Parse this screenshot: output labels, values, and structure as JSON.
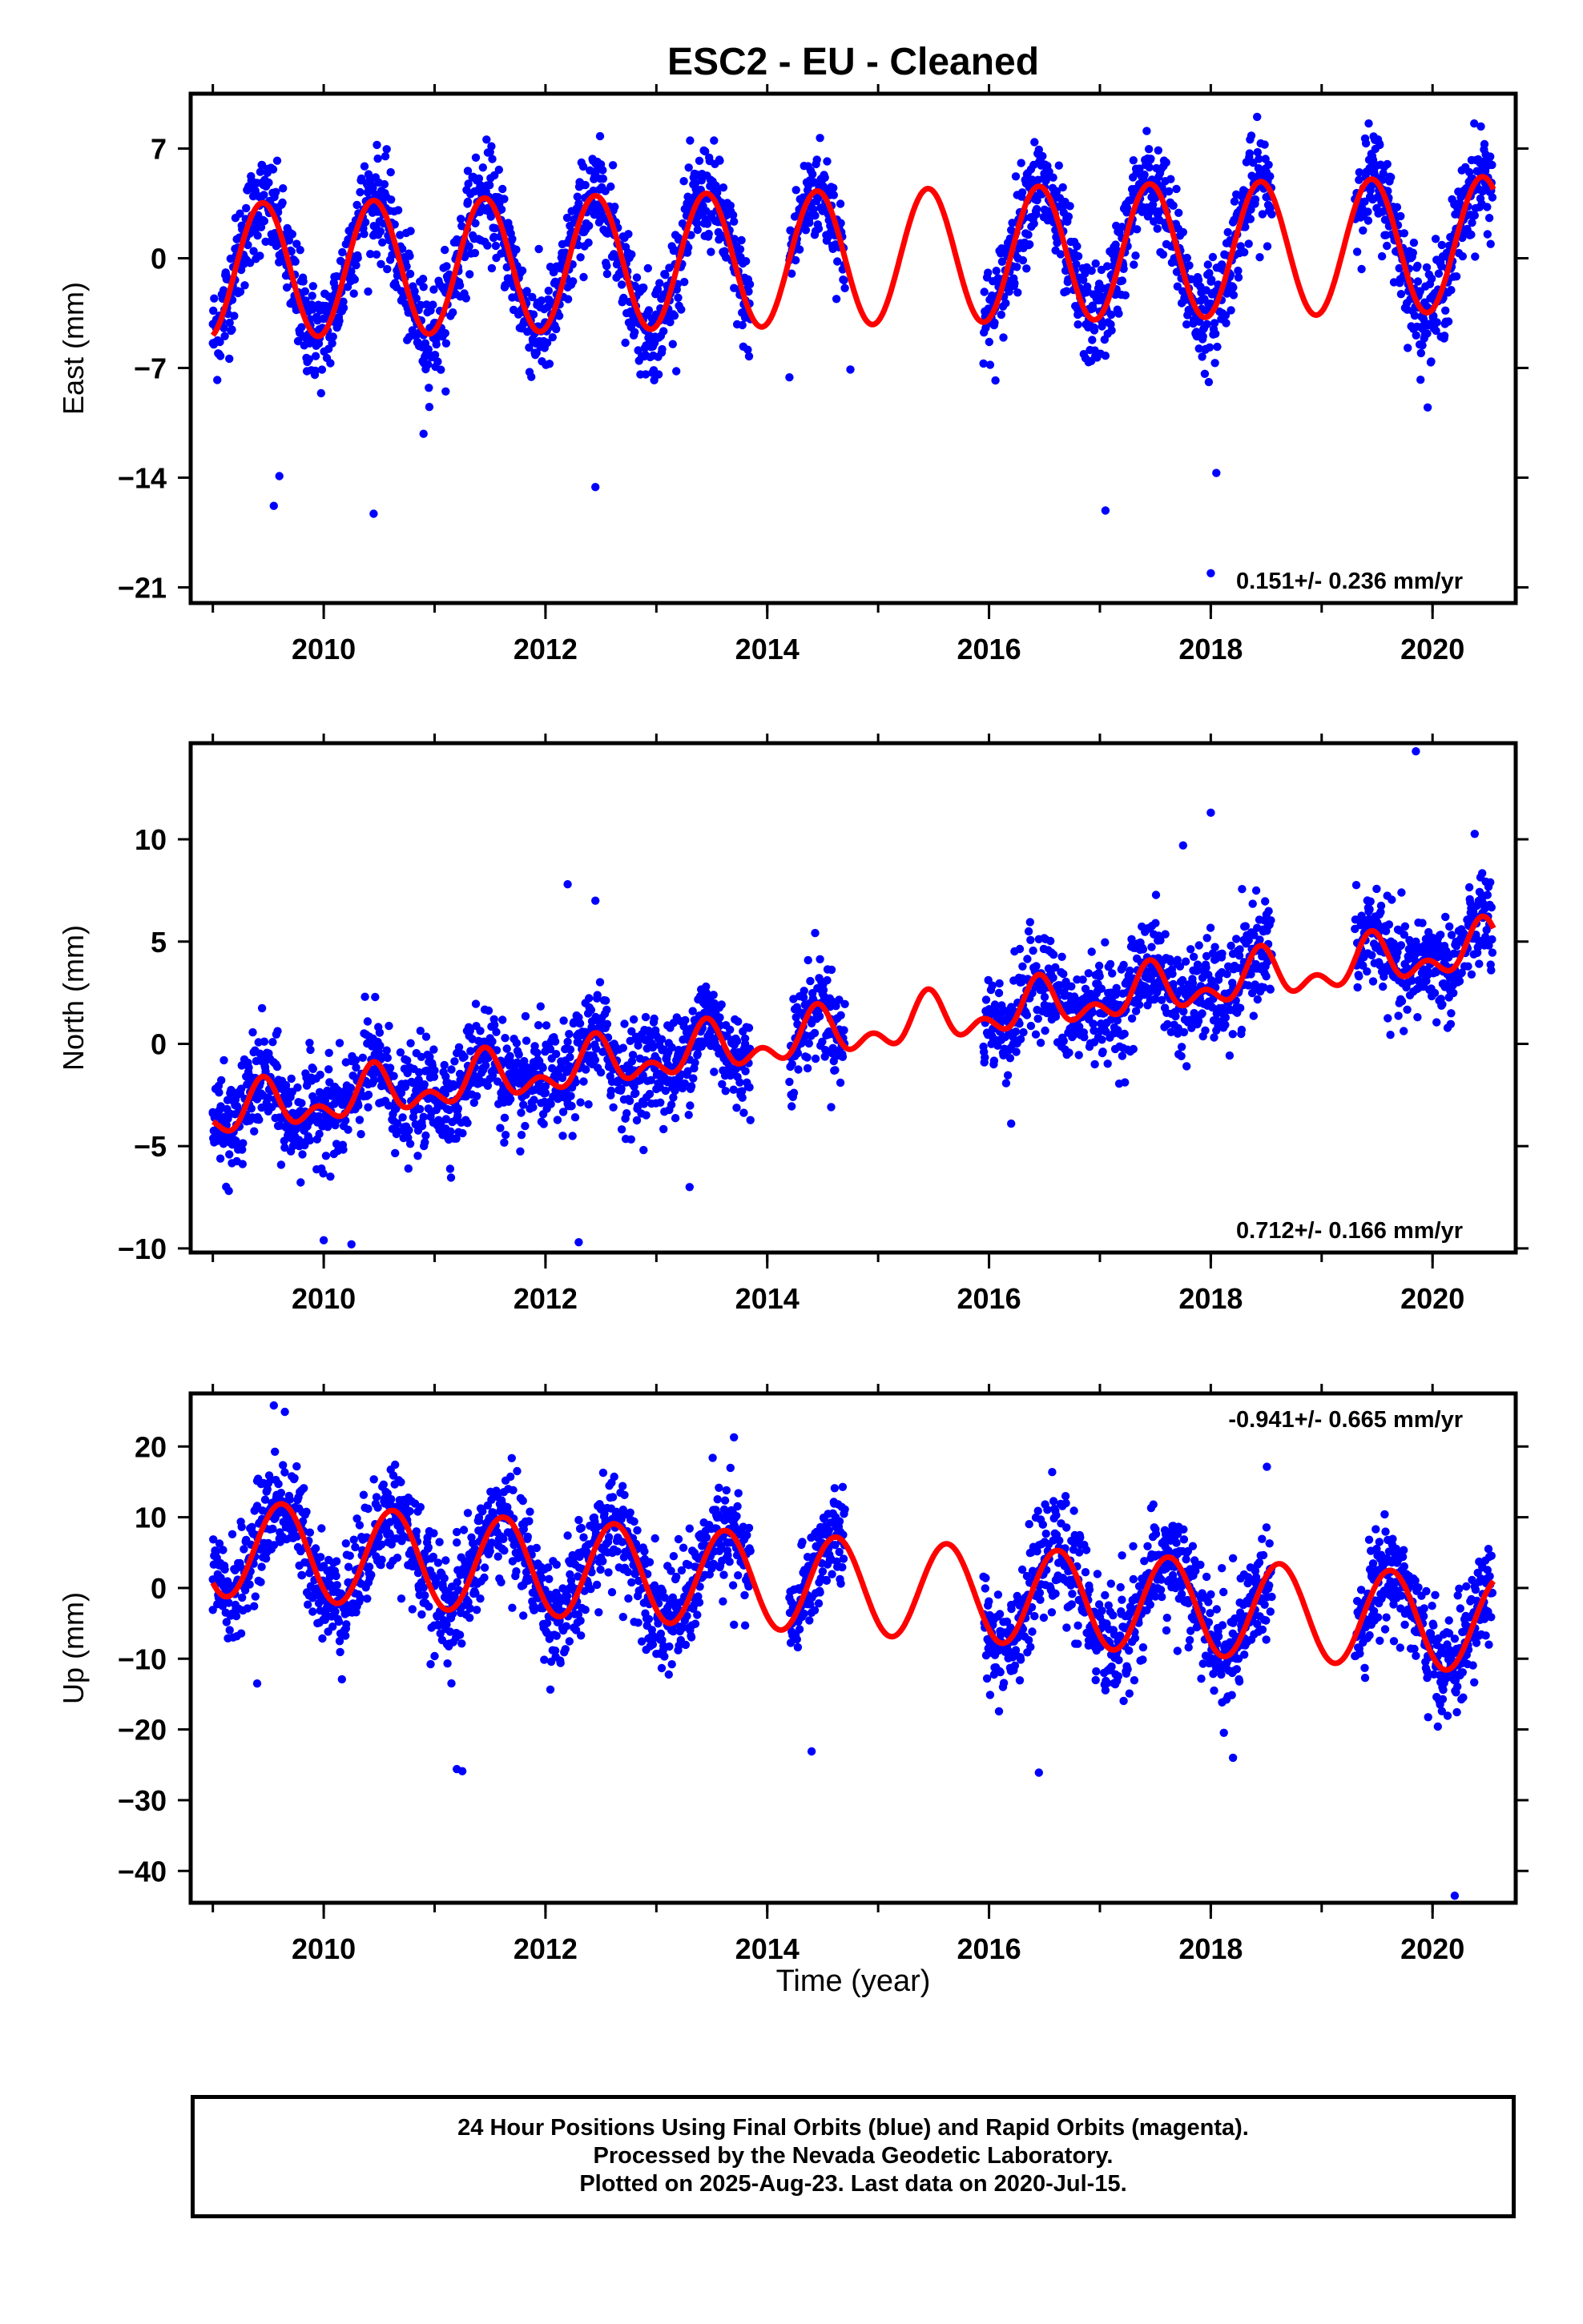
{
  "title": "ESC2  - EU - Cleaned",
  "xlabel": "Time (year)",
  "footer": {
    "line1": "24 Hour Positions Using Final Orbits (blue) and Rapid Orbits (magenta).",
    "line2": "Processed by the Nevada Geodetic Laboratory.",
    "line3": "Plotted on 2025-Aug-23. Last data on 2020-Jul-15."
  },
  "colors": {
    "points": "#0000ff",
    "model": "#ff0000",
    "frame": "#000000"
  },
  "chart_data": [
    {
      "type": "scatter",
      "component": "East",
      "ylabel": "East (mm)",
      "rate_text": "0.151+/- 0.236 mm/yr",
      "rate_position": "bottom-right",
      "xlim": [
        2008.8,
        2020.75
      ],
      "ylim": [
        -22,
        10.5
      ],
      "yticks": [
        7,
        0,
        -7,
        -14,
        -21
      ],
      "xticks": [
        2010,
        2012,
        2014,
        2016,
        2018,
        2020
      ],
      "grid": false,
      "data_spans": [
        [
          2009.0,
          2013.85
        ],
        [
          2014.2,
          2014.7
        ],
        [
          2015.95,
          2018.55
        ],
        [
          2019.3,
          2020.54
        ]
      ],
      "series": [
        {
          "name": "Final Orbits",
          "kind": "points",
          "x": [
            2009.0,
            2009.1,
            2009.2,
            2009.3,
            2009.4,
            2009.5,
            2009.6,
            2009.7,
            2009.8,
            2009.9,
            2010.0,
            2010.1,
            2010.2,
            2010.3,
            2010.4,
            2010.5,
            2010.6,
            2010.7,
            2010.8,
            2010.9,
            2011.0,
            2011.1,
            2011.2,
            2011.3,
            2011.4,
            2011.5,
            2011.6,
            2011.7,
            2011.8,
            2011.9,
            2012.0,
            2012.1,
            2012.2,
            2012.3,
            2012.4,
            2012.5,
            2012.6,
            2012.7,
            2012.8,
            2012.9,
            2013.0,
            2013.1,
            2013.2,
            2013.3,
            2013.4,
            2013.5,
            2013.6,
            2013.7,
            2013.8,
            2014.25,
            2014.35,
            2014.45,
            2014.55,
            2014.65,
            2016.0,
            2016.1,
            2016.2,
            2016.3,
            2016.4,
            2016.5,
            2016.6,
            2016.7,
            2016.8,
            2016.9,
            2017.0,
            2017.1,
            2017.2,
            2017.3,
            2017.4,
            2017.5,
            2017.6,
            2017.7,
            2017.8,
            2017.9,
            2018.0,
            2018.1,
            2018.2,
            2018.3,
            2018.4,
            2018.5,
            2019.35,
            2019.45,
            2019.55,
            2019.65,
            2019.75,
            2019.85,
            2019.95,
            2020.05,
            2020.15,
            2020.25,
            2020.35,
            2020.45,
            2009.55,
            2010.45,
            2009.6,
            2010.9,
            2012.45,
            2017.05,
            2018.0,
            2018.05,
            2014.2,
            2014.75
          ],
          "y": [
            -4.2,
            -2.1,
            0.6,
            3.2,
            4.8,
            3.1,
            0.2,
            -2.9,
            -4.4,
            -5.1,
            -4.5,
            -2.4,
            0.9,
            3.4,
            4.6,
            3.0,
            -0.1,
            -2.7,
            -4.6,
            -4.9,
            -4.3,
            -2.2,
            1.2,
            3.6,
            4.4,
            2.9,
            0.3,
            -2.5,
            -4.2,
            -4.8,
            -4.1,
            -2.3,
            1.0,
            3.5,
            4.1,
            2.7,
            0.1,
            -2.6,
            -4.1,
            -4.6,
            -3.9,
            -1.8,
            1.3,
            3.7,
            4.3,
            2.6,
            0.4,
            -1.9,
            -3.8,
            1.5,
            3.9,
            4.1,
            2.8,
            0.7,
            -3.7,
            -1.4,
            1.8,
            4.2,
            4.5,
            3.1,
            0.5,
            -2.1,
            -3.6,
            -3.9,
            -3.4,
            -1.1,
            2.0,
            4.1,
            4.6,
            3.0,
            0.9,
            -1.8,
            -3.3,
            -3.5,
            -2.9,
            -0.4,
            2.3,
            4.3,
            4.8,
            3.9,
            2.8,
            5.6,
            5.0,
            2.9,
            0.3,
            -2.2,
            -3.1,
            -2.0,
            0.8,
            3.3,
            5.1,
            6.0,
            -15.8,
            -16.3,
            -13.9,
            -11.2,
            -14.6,
            -16.1,
            -20.1,
            -13.7,
            -7.6,
            -7.1
          ]
        },
        {
          "name": "Model fit",
          "kind": "line",
          "amplitude": 4.3,
          "phase_peak": 0.45,
          "rate": 0.151,
          "ref_year": 2014.5,
          "offset": 0.0
        }
      ]
    },
    {
      "type": "scatter",
      "component": "North",
      "ylabel": "North (mm)",
      "rate_text": "0.712+/- 0.166 mm/yr",
      "rate_position": "bottom-right",
      "xlim": [
        2008.8,
        2020.75
      ],
      "ylim": [
        -10.2,
        14.7
      ],
      "yticks": [
        10,
        5,
        0,
        -5,
        -10
      ],
      "xticks": [
        2010,
        2012,
        2014,
        2016,
        2018,
        2020
      ],
      "grid": false,
      "data_spans": [
        [
          2009.0,
          2013.85
        ],
        [
          2014.2,
          2014.7
        ],
        [
          2015.95,
          2018.55
        ],
        [
          2019.3,
          2020.54
        ]
      ],
      "series": [
        {
          "name": "Final Orbits",
          "kind": "points",
          "x": [
            2009.0,
            2009.1,
            2009.2,
            2009.3,
            2009.4,
            2009.5,
            2009.6,
            2009.7,
            2009.8,
            2009.9,
            2010.0,
            2010.1,
            2010.2,
            2010.3,
            2010.4,
            2010.5,
            2010.6,
            2010.7,
            2010.8,
            2010.9,
            2011.0,
            2011.1,
            2011.2,
            2011.3,
            2011.4,
            2011.5,
            2011.6,
            2011.7,
            2011.8,
            2011.9,
            2012.0,
            2012.1,
            2012.2,
            2012.3,
            2012.4,
            2012.5,
            2012.6,
            2012.7,
            2012.8,
            2012.9,
            2013.0,
            2013.1,
            2013.2,
            2013.3,
            2013.4,
            2013.5,
            2013.6,
            2013.7,
            2013.8,
            2014.25,
            2014.35,
            2014.45,
            2014.55,
            2014.65,
            2016.0,
            2016.1,
            2016.2,
            2016.3,
            2016.4,
            2016.5,
            2016.6,
            2016.7,
            2016.8,
            2016.9,
            2017.0,
            2017.1,
            2017.2,
            2017.3,
            2017.4,
            2017.5,
            2017.6,
            2017.7,
            2017.8,
            2017.9,
            2018.0,
            2018.1,
            2018.2,
            2018.3,
            2018.4,
            2018.5,
            2019.35,
            2019.45,
            2019.55,
            2019.65,
            2019.75,
            2019.85,
            2019.95,
            2020.05,
            2020.15,
            2020.25,
            2020.35,
            2020.45,
            2019.85,
            2018.0,
            2017.75,
            2012.2,
            2012.45,
            2010.0,
            2010.25,
            2012.3,
            2013.3,
            2016.2
          ],
          "y": [
            -3.4,
            -4.1,
            -3.0,
            -1.6,
            -2.2,
            -3.3,
            -3.6,
            -2.4,
            -2.9,
            -3.7,
            -3.0,
            -2.1,
            -0.9,
            -1.8,
            -3.1,
            -2.9,
            -1.5,
            -2.4,
            -3.0,
            -2.2,
            -1.3,
            -1.6,
            -2.7,
            -2.1,
            -0.8,
            -1.7,
            -2.4,
            -1.8,
            -1.2,
            -1.6,
            -2.4,
            -1.5,
            0.1,
            0.5,
            -0.9,
            -1.4,
            -0.6,
            -0.2,
            -1.3,
            -0.8,
            0.4,
            0.9,
            -0.3,
            -0.2,
            0.6,
            1.2,
            0.3,
            -0.4,
            0.0,
            -0.6,
            0.4,
            1.5,
            1.9,
            0.7,
            1.3,
            0.6,
            1.8,
            3.2,
            3.0,
            1.9,
            1.4,
            2.8,
            2.1,
            1.2,
            1.5,
            2.5,
            3.7,
            3.2,
            2.4,
            2.2,
            3.3,
            4.1,
            2.9,
            2.3,
            2.6,
            3.5,
            4.4,
            4.0,
            2.9,
            3.3,
            4.1,
            5.4,
            5.0,
            3.8,
            3.9,
            5.0,
            4.4,
            3.6,
            4.3,
            5.5,
            6.1,
            6.4,
            14.3,
            11.3,
            9.7,
            7.8,
            7.0,
            -9.6,
            -9.8,
            -9.7,
            -7.0,
            -3.9
          ]
        },
        {
          "name": "Model fit",
          "kind": "line",
          "amplitude": 0.9,
          "phase_peak": 0.45,
          "rate": 0.712,
          "ref_year": 2014.5,
          "offset": 0.4,
          "semiannual": 0.7
        }
      ]
    },
    {
      "type": "scatter",
      "component": "Up",
      "ylabel": "Up (mm)",
      "rate_text": "-0.941+/- 0.665 mm/yr",
      "rate_position": "top-right",
      "xlim": [
        2008.8,
        2020.75
      ],
      "ylim": [
        -44.5,
        27.5
      ],
      "yticks": [
        20,
        10,
        0,
        -10,
        -20,
        -30,
        -40
      ],
      "xticks": [
        2010,
        2012,
        2014,
        2016,
        2018,
        2020
      ],
      "grid": false,
      "data_spans": [
        [
          2009.0,
          2013.85
        ],
        [
          2014.2,
          2014.7
        ],
        [
          2015.95,
          2018.55
        ],
        [
          2019.3,
          2020.54
        ]
      ],
      "series": [
        {
          "name": "Final Orbits",
          "kind": "points",
          "x": [
            2009.0,
            2009.1,
            2009.2,
            2009.3,
            2009.4,
            2009.5,
            2009.6,
            2009.7,
            2009.8,
            2009.9,
            2010.0,
            2010.1,
            2010.2,
            2010.3,
            2010.4,
            2010.5,
            2010.6,
            2010.7,
            2010.8,
            2010.9,
            2011.0,
            2011.1,
            2011.2,
            2011.3,
            2011.4,
            2011.5,
            2011.6,
            2011.7,
            2011.8,
            2011.9,
            2012.0,
            2012.1,
            2012.2,
            2012.3,
            2012.4,
            2012.5,
            2012.6,
            2012.7,
            2012.8,
            2012.9,
            2013.0,
            2013.1,
            2013.2,
            2013.3,
            2013.4,
            2013.5,
            2013.6,
            2013.7,
            2013.8,
            2014.25,
            2014.35,
            2014.45,
            2014.55,
            2014.65,
            2016.0,
            2016.1,
            2016.2,
            2016.3,
            2016.4,
            2016.5,
            2016.6,
            2016.7,
            2016.8,
            2016.9,
            2017.0,
            2017.1,
            2017.2,
            2017.3,
            2017.4,
            2017.5,
            2017.6,
            2017.7,
            2017.8,
            2017.9,
            2018.0,
            2018.1,
            2018.2,
            2018.3,
            2018.4,
            2018.5,
            2019.35,
            2019.45,
            2019.55,
            2019.65,
            2019.75,
            2019.85,
            2019.95,
            2020.05,
            2020.15,
            2020.25,
            2020.35,
            2020.45,
            2009.55,
            2009.65,
            2020.2,
            2011.2,
            2011.25,
            2016.45,
            2014.4,
            2013.7,
            2009.4,
            2018.2
          ],
          "y": [
            1.2,
            -0.8,
            2.5,
            6.8,
            11.6,
            14.8,
            12.3,
            7.1,
            1.8,
            -1.4,
            -0.6,
            2.4,
            6.3,
            9.8,
            11.2,
            8.1,
            3.2,
            -1.5,
            -3.0,
            -2.1,
            0.3,
            3.9,
            7.9,
            10.6,
            9.5,
            5.2,
            0.8,
            -2.8,
            -3.9,
            -3.1,
            -0.7,
            3.3,
            7.4,
            9.6,
            8.8,
            4.3,
            -0.6,
            -4.1,
            -4.8,
            -3.6,
            -0.4,
            3.1,
            6.9,
            8.4,
            7.6,
            3.2,
            -1.9,
            -5.2,
            -5.3,
            -3.4,
            0.9,
            5.8,
            7.4,
            5.1,
            -7.6,
            -6.1,
            -2.4,
            2.6,
            5.8,
            4.1,
            -0.8,
            -5.6,
            -7.9,
            -7.4,
            -4.1,
            0.6,
            4.6,
            5.9,
            3.8,
            -1.2,
            -6.0,
            -8.9,
            -8.4,
            -5.3,
            -0.9,
            2.8,
            4.2,
            1.9,
            -3.1,
            -7.3,
            -3.0,
            1.6,
            3.0,
            0.1,
            -5.2,
            -9.6,
            -11.8,
            -10.7,
            -6.4,
            -2.9,
            -1.6,
            2.9,
            25.8,
            24.9,
            -43.5,
            -25.6,
            -25.9,
            -26.1,
            -23.1,
            21.3,
            -13.5,
            -24.0
          ]
        },
        {
          "name": "Model fit",
          "kind": "line",
          "amplitude": 6.8,
          "phase_peak": 0.62,
          "rate": -0.941,
          "ref_year": 2014.5,
          "offset": 0.5,
          "semiannual": 0.0
        }
      ]
    }
  ]
}
